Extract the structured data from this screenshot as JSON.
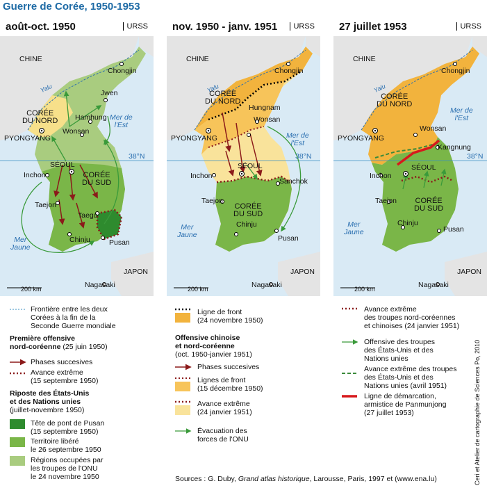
{
  "title": "Guerre de Corée, 1950-1953",
  "colors": {
    "sea": "#d9eaf5",
    "territory_light_green": "#a9cc7f",
    "territory_green": "#7ab648",
    "dark_green": "#2e8b2e",
    "yellow": "#f7e08a",
    "orange": "#f2b33d",
    "pale_yellow": "#f9e39b",
    "gray_land": "#e4e4e4",
    "front_red": "#8b1a1a",
    "arrow_green": "#3a9a3a",
    "armistice_red": "#d7191c"
  },
  "panels": [
    {
      "title": "août-oct. 1950",
      "ussr": "URSS",
      "labels": {
        "china": "CHINE",
        "yalu": "Yalu",
        "chongjin": "Chongjin",
        "jwen": "Jwen",
        "nk": "CORÉE\nDU NORD",
        "hamhung": "Hamhung",
        "pyongyang": "PYONGYANG",
        "wonsan": "Wonsan",
        "sea_east": "Mer de\nl'Est",
        "parallel": "38°N",
        "seoul": "SÉOUL",
        "inchon": "Inchon",
        "sk": "CORÉE\nDU SUD",
        "taejon": "Taejon",
        "taegu": "Taegu",
        "sea_yellow": "Mer\nJaune",
        "chinju": "Chinju",
        "pusan": "Pusan",
        "japan": "JAPON",
        "nagasaki": "Nagasaki",
        "scale": "200 km"
      }
    },
    {
      "title": "nov. 1950 - janv. 1951",
      "ussr": "URSS",
      "labels": {
        "china": "CHINE",
        "yalu": "Yalu",
        "chongjin": "Chongjin",
        "nk": "CORÉE\nDU NORD",
        "hungnam": "Hungnam",
        "pyongyang": "PYONGYANG",
        "wonsan": "Wonsan",
        "sea_east": "Mer de\nl'Est",
        "parallel": "38°N",
        "seoul": "SÉOUL",
        "inchon": "Inchon",
        "sanchok": "Sanchok",
        "taejon": "Taejon",
        "sk": "CORÉE\nDU SUD",
        "sea_yellow": "Mer\nJaune",
        "chinju": "Chinju",
        "pusan": "Pusan",
        "japan": "JAPON",
        "nagasaki": "Nagasaki",
        "scale": "200 km"
      }
    },
    {
      "title": "27 juillet 1953",
      "ussr": "URSS",
      "labels": {
        "china": "CHINE",
        "yalu": "Yalu",
        "chongjin": "Chongjin",
        "nk": "CORÉE\nDU NORD",
        "pyongyang": "PYONGYANG",
        "wonsan": "Wonsan",
        "sea_east": "Mer de\nl'Est",
        "kangnung": "Kangnung",
        "parallel": "38°N",
        "seoul": "SÉOUL",
        "inchon": "Inchon",
        "taejon": "Taejon",
        "sk": "CORÉE\nDU SUD",
        "sea_yellow": "Mer\nJaune",
        "chinju": "Chinju",
        "pusan": "Pusan",
        "japan": "JAPON",
        "nagasaki": "Nagasaki",
        "scale": "200 km"
      }
    }
  ],
  "legend": {
    "col1": {
      "frontier": "Frontière entre les deux\nCorées à la fin de la\nSeconde Guerre mondiale",
      "offensive_nk_title": "Première offensive\nnord-coréenne",
      "offensive_nk_date": " (25 juin 1950)",
      "phases": "Phases succesives",
      "avance": "Avance extrême\n(15 septembre 1950)",
      "riposte_title": "Riposte des États-Unis\net des Nations unies",
      "riposte_date": "(juillet-novembre 1950)",
      "pusan": "Tête de pont de Pusan\n(15 septembre 1950)",
      "libere": "Territoire libéré\nle 26 septembre 1950",
      "occupees": "Régions occupées par\nles troupes de l'ONU\nle 24 novembre 1950"
    },
    "col2": {
      "front": "Ligne de front\n(24 novembre 1950)",
      "offensive_title": "Offensive chinoise\net nord-coréenne",
      "offensive_date": "(oct. 1950-janvier 1951)",
      "phases": "Phases succesives",
      "lignes": "Lignes de front\n(15 décembre 1950)",
      "avance": "Avance extrême\n(24 janvier 1951)",
      "evacuation": "Évacuation des\nforces de l'ONU"
    },
    "col3": {
      "avance_nk": "Avance extrême\ndes troupes nord-coréennes\net chinoises (24 janvier 1951)",
      "offensive_us": "Offensive des troupes\ndes États-Unis et des\nNations unies",
      "avance_us": "Avance extrême des troupes\ndes États-Unis et des\nNations unies (avril 1951)",
      "demarcation": "Ligne de démarcation,\narmistice de Panmunjong\n(27 juillet 1953)"
    }
  },
  "sources_prefix": "Sources : G. Duby, ",
  "sources_title": "Grand atlas historique",
  "sources_suffix": ", Larousse, Paris, 1997 et (www.ena.lu)",
  "credit": "Ceri et Atelier de cartographie de Sciences Po, 2010"
}
